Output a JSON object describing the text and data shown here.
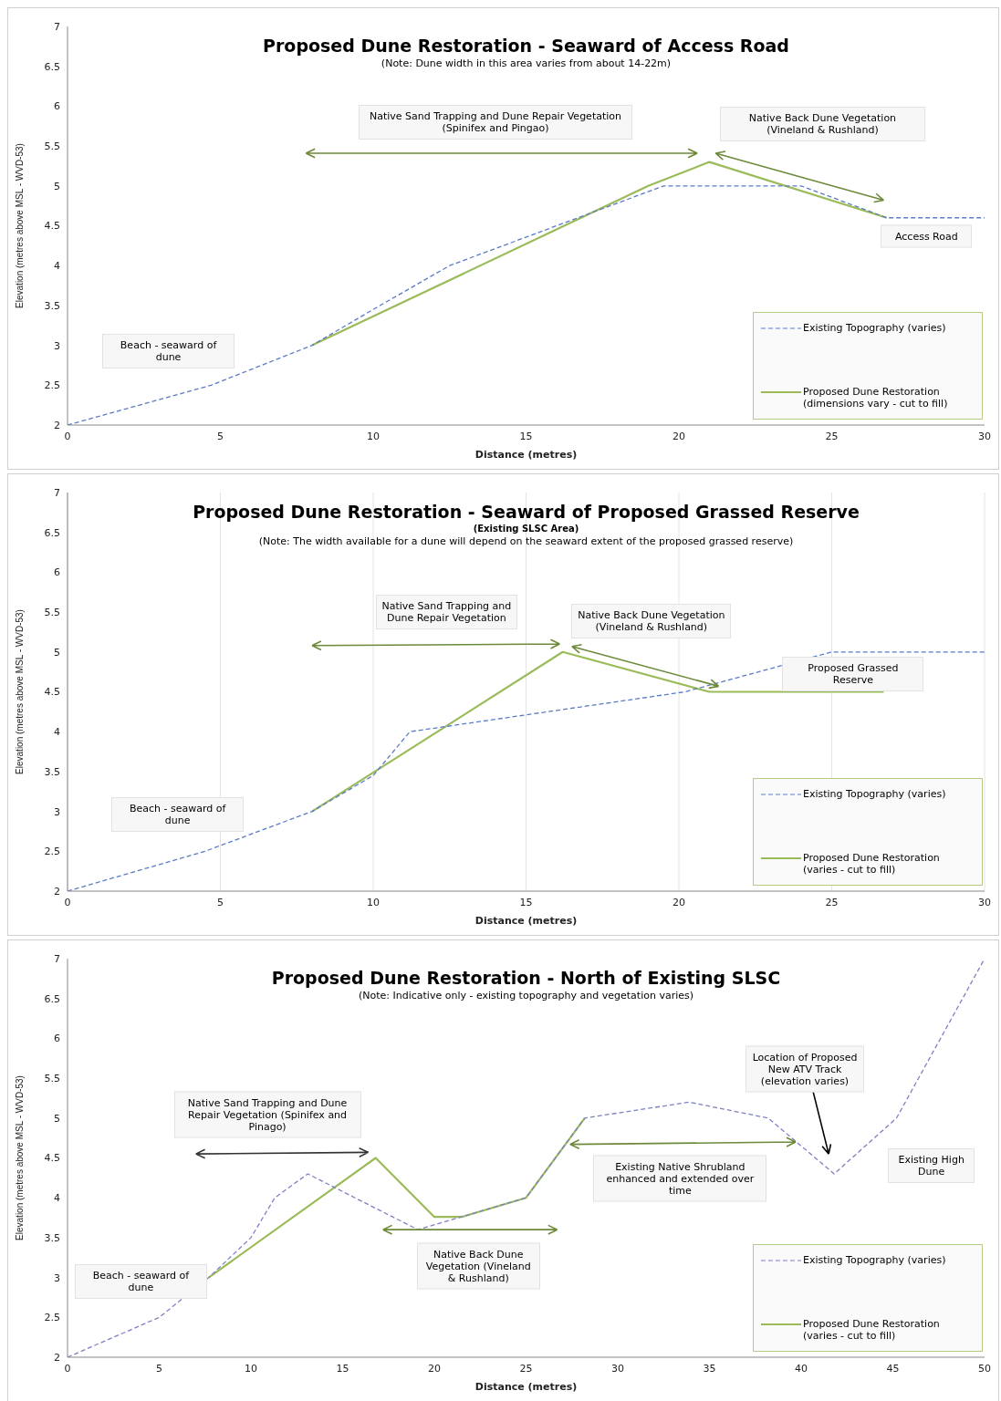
{
  "chart_data": [
    {
      "type": "line",
      "title": "Proposed Dune Restoration - Seaward of Access Road",
      "subtitle": "(Note: Dune width in this area varies from about 14-22m)",
      "xlabel": "Distance (metres)",
      "ylabel": "Elevation (metres above MSL - WVD-53)",
      "xlim": [
        0,
        30
      ],
      "xticks": [
        0,
        5,
        10,
        15,
        20,
        25,
        30
      ],
      "ylim": [
        2,
        7
      ],
      "yticks": [
        2,
        2.5,
        3,
        3.5,
        4,
        4.5,
        5,
        5.5,
        6,
        6.5,
        7
      ],
      "grid": false,
      "legend": "bottom right",
      "marker": "none",
      "annotations": [
        "Native Sand Trapping and Dune Repair Vegetation (Spinifex and Pingao)",
        "Native Back Dune Vegetation (Vineland & Rushland)",
        "Access Road",
        "Beach - seaward of dune"
      ],
      "series": [
        {
          "name": "Existing Topography (varies)",
          "color": "#5b7bc6",
          "line_style": "dashed",
          "x": [
            0,
            4.7,
            8,
            10,
            12.5,
            16,
            19.5,
            24,
            26.8,
            30
          ],
          "values": [
            2,
            2.5,
            3,
            3.45,
            4,
            4.5,
            5,
            5,
            4.6,
            4.6
          ]
        },
        {
          "name": "Proposed Dune Restoration (dimensions vary - cut to fill)",
          "color": "#9bbb59",
          "line_style": "solid",
          "x": [
            8,
            19,
            21,
            26.8
          ],
          "values": [
            3,
            5,
            5.3,
            4.6
          ]
        }
      ]
    },
    {
      "type": "line",
      "title": "Proposed Dune Restoration - Seaward of Proposed Grassed Reserve",
      "subtitle": "(Existing SLSC Area)",
      "xlabel": "Distance (metres)",
      "ylabel": "Elevation (metres above MSL - WVD-53)",
      "xlim": [
        0,
        30
      ],
      "xticks": [
        0,
        5,
        10,
        15,
        20,
        25,
        30
      ],
      "ylim": [
        2,
        7
      ],
      "yticks": [
        2,
        2.5,
        3,
        3.5,
        4,
        4.5,
        5,
        5.5,
        6,
        6.5,
        7
      ],
      "grid": "x",
      "legend": "bottom right",
      "marker": "none",
      "annotations": [
        "(Note: The width available for a dune will depend on the seaward extent of the  proposed grassed reserve)",
        "Native Sand Trapping and Dune Repair Vegetation",
        "Native Back Dune Vegetation (Vineland & Rushland)",
        "Proposed Grassed Reserve",
        "Beach - seaward of dune"
      ],
      "series": [
        {
          "name": "Existing Topography (varies)",
          "color": "#5b7bc6",
          "line_style": "dashed",
          "x": [
            0,
            4.5,
            8,
            10,
            11.2,
            20.2,
            25,
            30
          ],
          "values": [
            2,
            2.5,
            3,
            3.45,
            4,
            4.5,
            5,
            5
          ]
        },
        {
          "name": "Proposed Dune Restoration (varies - cut to fill)",
          "color": "#9bbb59",
          "line_style": "solid",
          "x": [
            8,
            16.2,
            21,
            26.7
          ],
          "values": [
            3,
            5,
            4.5,
            4.5
          ]
        }
      ]
    },
    {
      "type": "line",
      "title": "Proposed Dune Restoration - North of Existing SLSC",
      "subtitle": "(Note: Indicative only - existing topography and vegetation varies)",
      "xlabel": "Distance (metres)",
      "ylabel": "Elevation (metres above MSL - WVD-53)",
      "xlim": [
        0,
        50
      ],
      "xticks": [
        0,
        5,
        10,
        15,
        20,
        25,
        30,
        35,
        40,
        45,
        50
      ],
      "ylim": [
        2,
        7
      ],
      "yticks": [
        2,
        2.5,
        3,
        3.5,
        4,
        4.5,
        5,
        5.5,
        6,
        6.5,
        7
      ],
      "grid": false,
      "legend": "bottom right",
      "marker": "none",
      "annotations": [
        "Native Sand Trapping and Dune Repair Vegetation (Spinifex and Pinago)",
        "Native Back Dune Vegetation (Vineland & Rushland)",
        "Existing Native Shrubland enhanced and extended over time",
        "Location of Proposed New ATV Track (elevation varies)",
        "Existing High Dune",
        "Beach - seaward of dune"
      ],
      "series": [
        {
          "name": "Existing Topography (varies)",
          "color": "#7f80c2",
          "line_style": "dashed",
          "x": [
            0,
            5,
            7.7,
            10,
            11.3,
            13.1,
            19.1,
            25,
            28.2,
            33.9,
            38.2,
            41.8,
            45.2,
            50
          ],
          "values": [
            2,
            2.5,
            3,
            3.5,
            4,
            4.3,
            3.6,
            4,
            5,
            5.2,
            5,
            4.3,
            5,
            7
          ]
        },
        {
          "name": "Proposed Dune Restoration (varies - cut to fill)",
          "color": "#9bbb59",
          "line_style": "solid",
          "x": [
            7.7,
            16.8,
            20,
            21.5,
            25,
            28.2
          ],
          "values": [
            3,
            4.5,
            3.76,
            3.76,
            4,
            5
          ]
        }
      ]
    }
  ]
}
